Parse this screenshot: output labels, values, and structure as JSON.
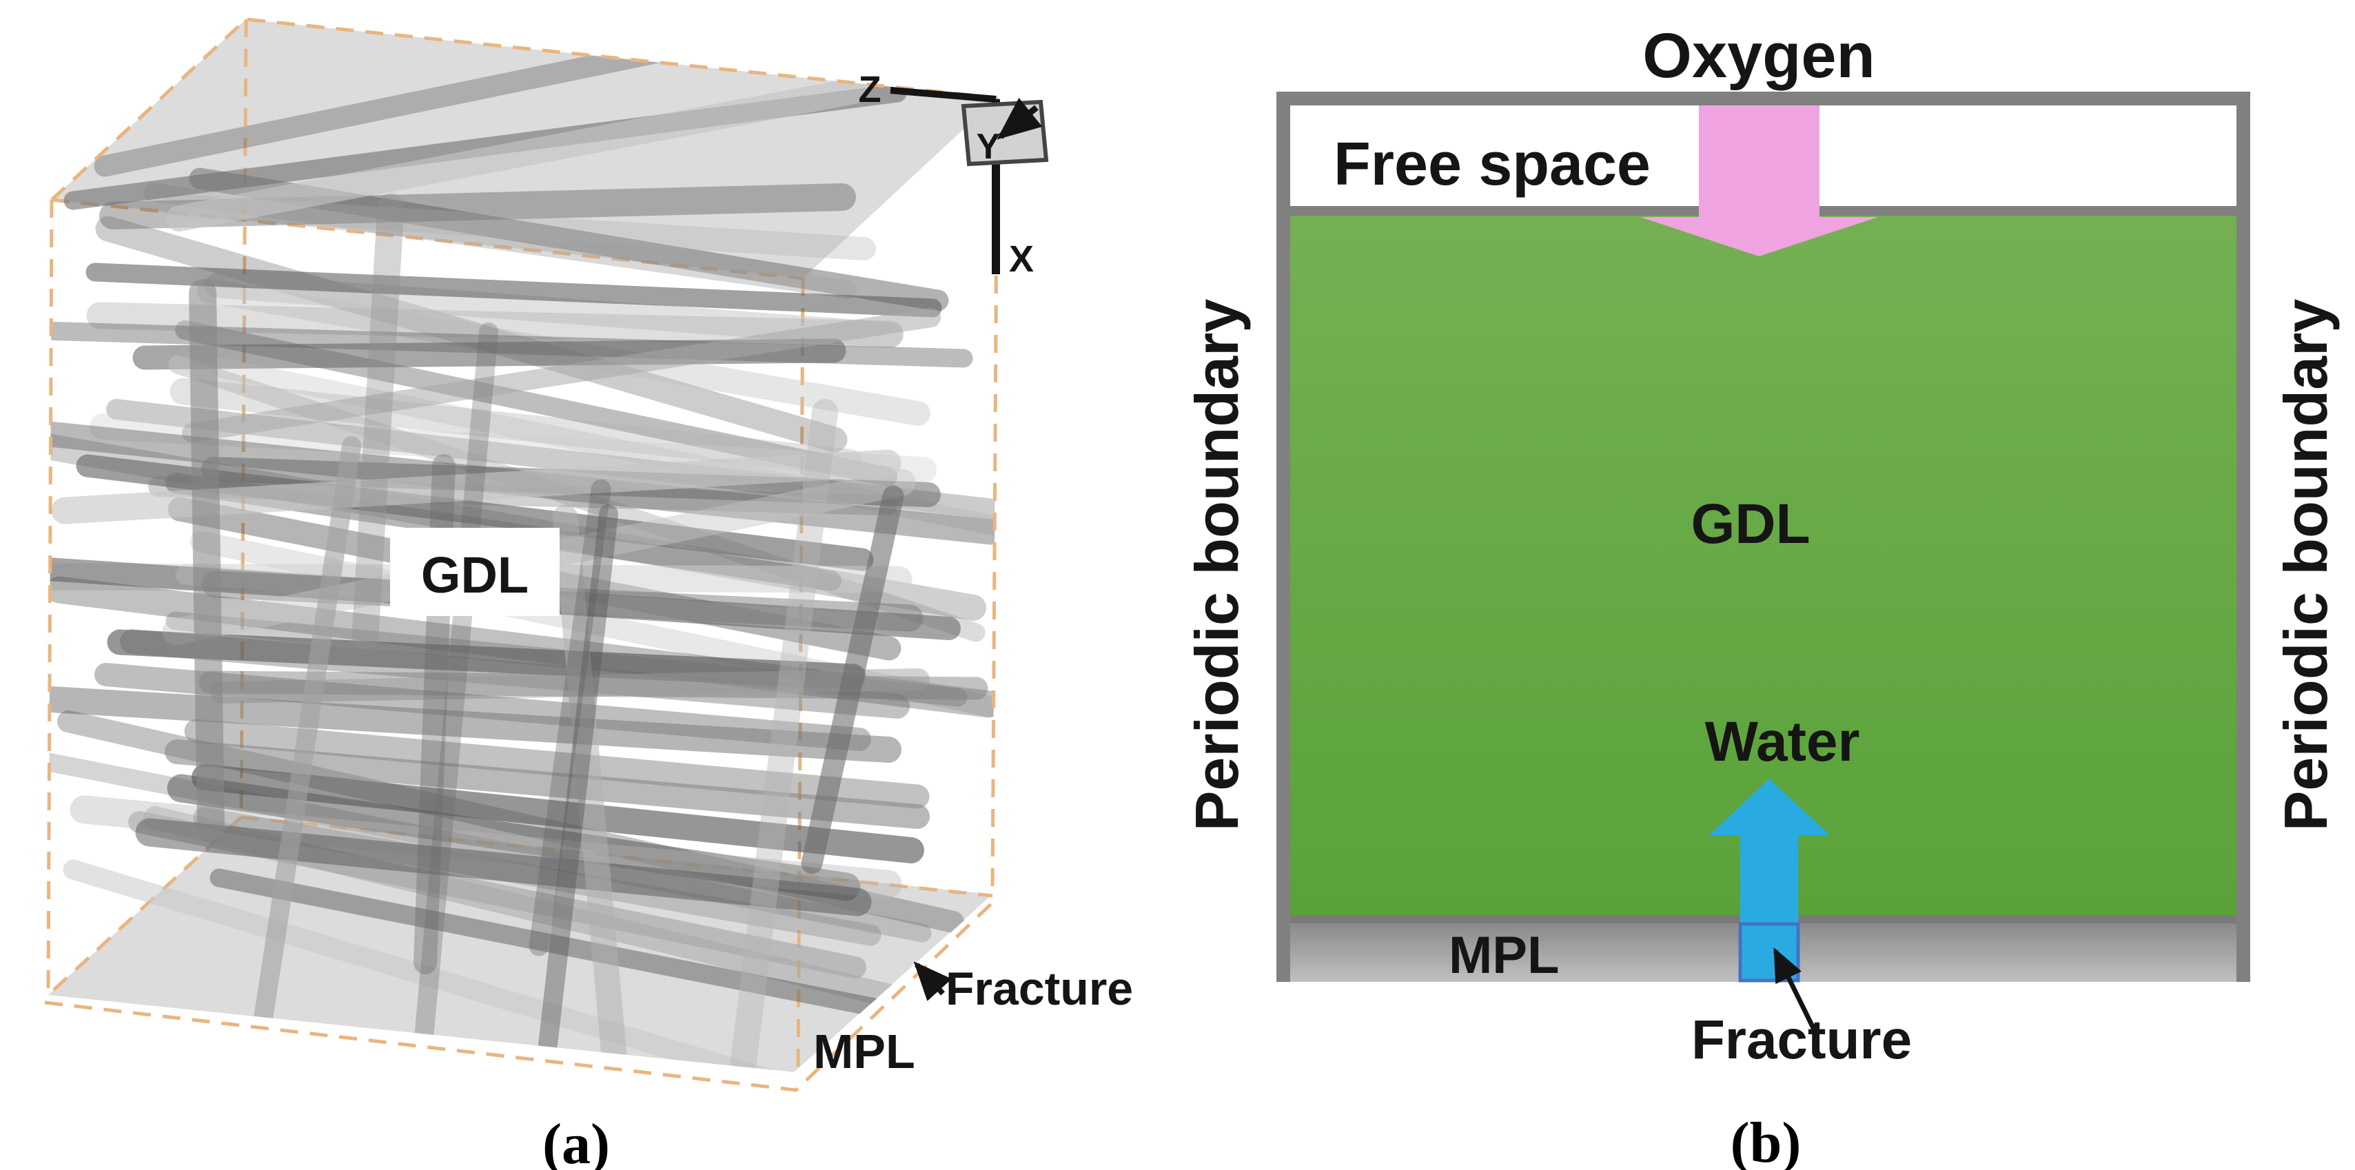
{
  "figure": {
    "panel_a": {
      "caption": "(a)",
      "gdl_label": "GDL",
      "mpl_label": "MPL",
      "fracture_label": "Fracture",
      "axis_z": "Z",
      "axis_y": "Y",
      "axis_x": "X"
    },
    "panel_b": {
      "caption": "(b)",
      "oxygen_label": "Oxygen",
      "free_space_label": "Free space",
      "gdl_label": "GDL",
      "water_label": "Water",
      "mpl_label": "MPL",
      "fracture_label": "Fracture",
      "periodic_boundary_left": "Periodic boundary",
      "periodic_boundary_right": "Periodic boundary"
    },
    "colors": {
      "gdl_green_top": "#74b052",
      "gdl_green_bottom": "#59a238",
      "oxygen_arrow_pink": "#f0a3e1",
      "water_arrow_blue": "#29abe2",
      "fracture_border_blue": "#4472c4",
      "boundary_gray": "#808080",
      "mpl_gray_top": "#8a8a8a",
      "mpl_gray_bottom": "#c0c0c0",
      "mpl_divider_gray": "#7a7a7a",
      "dashed_box_orange": "#e9b57f",
      "face_gray": "#d9d9d9",
      "slab_gray": "#dcdcdc"
    }
  }
}
